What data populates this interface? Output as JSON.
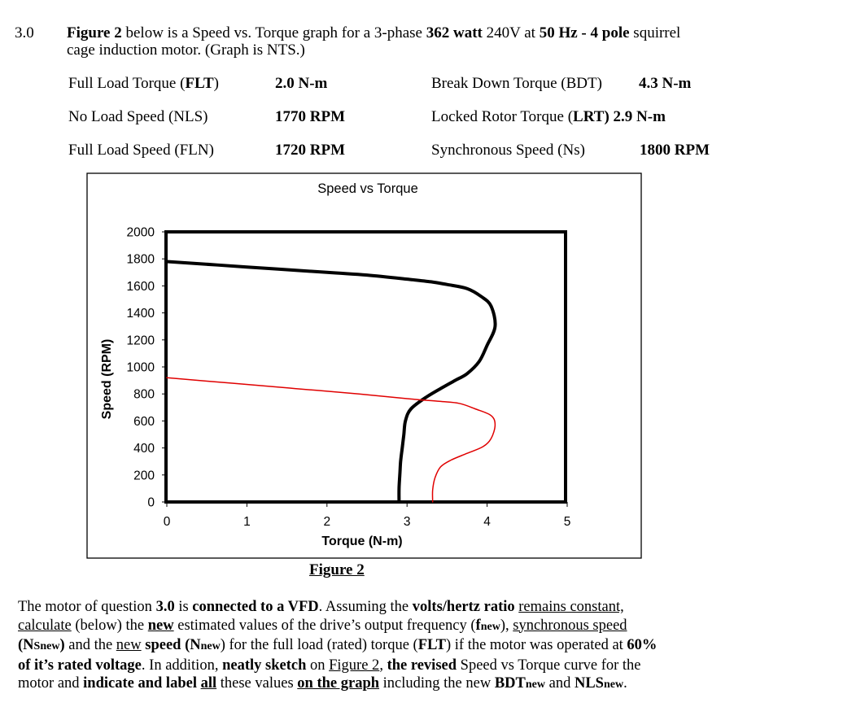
{
  "question": {
    "number": "3.0",
    "line1_a": "Figure 2",
    "line1_b": " below is a Speed vs. Torque graph for a 3-phase ",
    "line1_c": "362 watt",
    "line1_d": " 240V at ",
    "line1_e": "50 Hz - 4 pole",
    "line1_f": " squirrel",
    "line2": "cage induction motor. (Graph is NTS.)"
  },
  "specs": {
    "flt_label": "Full Load Torque (",
    "flt_abbr": "FLT",
    "flt_value": "2.0 N-m",
    "nls_label": "No Load Speed (NLS)",
    "nls_value": "1770 RPM",
    "fln_label": "Full Load Speed (FLN)",
    "fln_value": "1720 RPM",
    "bdt_label": "Break Down Torque (BDT)",
    "bdt_value": "4.3 N-m",
    "lrt_label": "Locked Rotor Torque (",
    "lrt_abbr": "LRT",
    "lrt_value": ") 2.9 N-m",
    "ns_label": "Synchronous Speed (Ns)",
    "ns_value": "1800 RPM"
  },
  "figure_caption": "Figure 2",
  "chart_data": {
    "type": "line",
    "title": "Speed vs Torque",
    "xlabel": "Torque (N-m)",
    "ylabel": "Speed (RPM)",
    "xlim": [
      0,
      5
    ],
    "ylim": [
      0,
      2000
    ],
    "xticks": [
      "0",
      "1",
      "2",
      "3",
      "4",
      "5"
    ],
    "yticks": [
      "0",
      "200",
      "400",
      "600",
      "800",
      "1000",
      "1200",
      "1400",
      "1600",
      "1800",
      "2000"
    ],
    "grid": false,
    "series": [
      {
        "color": "#000000",
        "points": [
          [
            0.0,
            1780
          ],
          [
            1.0,
            1740
          ],
          [
            2.0,
            1700
          ],
          [
            2.5,
            1680
          ],
          [
            3.0,
            1650
          ],
          [
            3.3,
            1630
          ],
          [
            3.5,
            1610
          ],
          [
            3.75,
            1580
          ],
          [
            3.93,
            1520
          ],
          [
            4.05,
            1450
          ],
          [
            4.1,
            1300
          ],
          [
            4.0,
            1160
          ],
          [
            3.9,
            1040
          ],
          [
            3.75,
            950
          ],
          [
            3.6,
            900
          ],
          [
            3.45,
            850
          ],
          [
            3.25,
            780
          ],
          [
            3.05,
            690
          ],
          [
            2.98,
            600
          ],
          [
            2.96,
            500
          ],
          [
            2.94,
            400
          ],
          [
            2.92,
            300
          ],
          [
            2.91,
            200
          ],
          [
            2.9,
            100
          ],
          [
            2.9,
            0
          ]
        ]
      },
      {
        "color": "#e00000",
        "points": [
          [
            0.0,
            920
          ],
          [
            0.8,
            880
          ],
          [
            1.6,
            840
          ],
          [
            2.4,
            800
          ],
          [
            3.0,
            765
          ],
          [
            3.4,
            745
          ],
          [
            3.65,
            730
          ],
          [
            3.85,
            690
          ],
          [
            4.05,
            640
          ],
          [
            4.1,
            570
          ],
          [
            4.05,
            470
          ],
          [
            3.95,
            410
          ],
          [
            3.75,
            360
          ],
          [
            3.55,
            310
          ],
          [
            3.42,
            260
          ],
          [
            3.35,
            180
          ],
          [
            3.32,
            90
          ],
          [
            3.32,
            0
          ]
        ]
      }
    ]
  },
  "paragraph": {
    "l1_a": "The motor of question ",
    "l1_b": "3.0",
    "l1_c": " is ",
    "l1_d": "connected to a VFD",
    "l1_e": ". Assuming the ",
    "l1_f": "volts/hertz ratio",
    "l1_g": " ",
    "l1_h": "remains constant,",
    "l2_a": "calculate",
    "l2_b": " (below) the ",
    "l2_c": "new",
    "l2_d": " estimated values of the drive’s output frequency (",
    "l2_e": "f",
    "l2_f": "new",
    "l2_g": "), ",
    "l2_h": "synchronous speed",
    "l3_a": "(N",
    "l3_b": "Snew",
    "l3_c": ")",
    "l3_d": " and the ",
    "l3_e": "new",
    "l3_f": " ",
    "l3_g": "speed",
    "l3_h": " (N",
    "l3_i": "new",
    "l3_j": ") for the full load (rated) torque (",
    "l3_k": "FLT",
    "l3_l": ") if the motor was operated at ",
    "l3_m": "60%",
    "l4_a": "of it’s rated voltage",
    "l4_b": ". In addition, ",
    "l4_c": "neatly sketch",
    "l4_d": " on ",
    "l4_e": "Figure 2",
    "l4_f": ", ",
    "l4_g": "the revised",
    "l4_h": " Speed vs Torque curve for the",
    "l5_a": "motor and ",
    "l5_b": "indicate and label ",
    "l5_c": "all",
    "l5_d": " these values ",
    "l5_e": "on the graph",
    "l5_f": " including the new ",
    "l5_g": "BDT",
    "l5_h": "new",
    "l5_i": " and ",
    "l5_j": "NLS",
    "l5_k": "new",
    "l5_l": "."
  }
}
